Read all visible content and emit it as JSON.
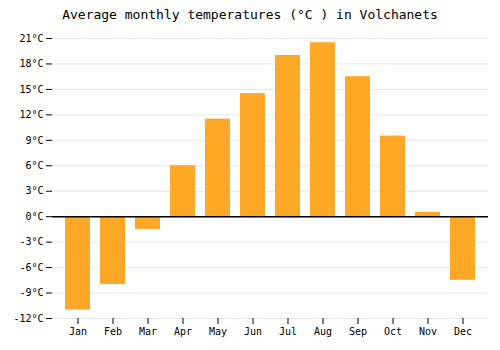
{
  "chart_data": {
    "type": "bar",
    "title": "Average monthly temperatures (°C ) in Volchanets",
    "categories": [
      "Jan",
      "Feb",
      "Mar",
      "Apr",
      "May",
      "Jun",
      "Jul",
      "Aug",
      "Sep",
      "Oct",
      "Nov",
      "Dec"
    ],
    "values": [
      -11,
      -8,
      -1.5,
      6,
      11.5,
      14.5,
      19,
      20.5,
      16.5,
      9.5,
      0.5,
      -7.5
    ],
    "color": "#FFA726",
    "ylim": [
      -12,
      21
    ],
    "yticks": [
      {
        "value": -12,
        "label": "-12°C"
      },
      {
        "value": -9,
        "label": "-9°C"
      },
      {
        "value": -6,
        "label": "-6°C"
      },
      {
        "value": -3,
        "label": "-3°C"
      },
      {
        "value": 0,
        "label": "0°C"
      },
      {
        "value": 3,
        "label": "3°C"
      },
      {
        "value": 6,
        "label": "6°C"
      },
      {
        "value": 9,
        "label": "9°C"
      },
      {
        "value": 12,
        "label": "12°C"
      },
      {
        "value": 15,
        "label": "15°C"
      },
      {
        "value": 18,
        "label": "18°C"
      },
      {
        "value": 21,
        "label": "21°C"
      }
    ],
    "grid": true
  }
}
